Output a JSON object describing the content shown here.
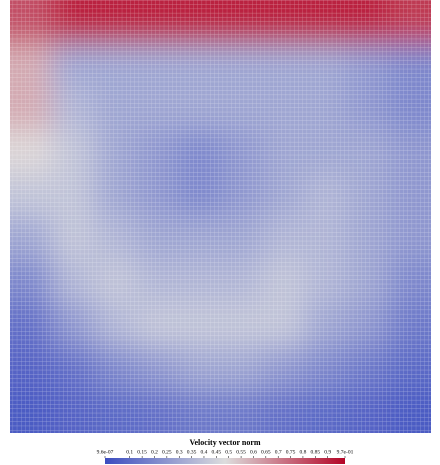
{
  "chart_data": {
    "type": "heatmap",
    "values": [
      [
        0.8,
        0.9,
        0.9,
        0.9,
        0.9,
        0.9,
        0.9,
        0.9,
        0.9,
        0.85
      ],
      [
        0.6,
        0.3,
        0.3,
        0.3,
        0.3,
        0.3,
        0.3,
        0.3,
        0.25,
        0.2
      ],
      [
        0.6,
        0.35,
        0.3,
        0.3,
        0.3,
        0.3,
        0.3,
        0.3,
        0.25,
        0.2
      ],
      [
        0.5,
        0.4,
        0.3,
        0.25,
        0.2,
        0.25,
        0.3,
        0.3,
        0.3,
        0.25
      ],
      [
        0.4,
        0.4,
        0.3,
        0.25,
        0.2,
        0.25,
        0.3,
        0.35,
        0.3,
        0.25
      ],
      [
        0.3,
        0.4,
        0.35,
        0.3,
        0.3,
        0.3,
        0.35,
        0.35,
        0.3,
        0.25
      ],
      [
        0.2,
        0.35,
        0.4,
        0.35,
        0.35,
        0.35,
        0.4,
        0.35,
        0.3,
        0.2
      ],
      [
        0.12,
        0.25,
        0.35,
        0.4,
        0.4,
        0.4,
        0.4,
        0.3,
        0.25,
        0.15
      ],
      [
        0.08,
        0.12,
        0.2,
        0.25,
        0.3,
        0.3,
        0.25,
        0.2,
        0.15,
        0.1
      ],
      [
        0.05,
        0.08,
        0.1,
        0.12,
        0.15,
        0.15,
        0.12,
        0.1,
        0.08,
        0.05
      ]
    ],
    "colormap": [
      "#3b4cc0",
      "#dddddd",
      "#b40426"
    ],
    "colorbar": {
      "title": "Velocity vector norm",
      "clim": [
        9.6e-07,
        0.97
      ],
      "ticks": [
        {
          "value": 9.6e-07,
          "label": "9.6e-07"
        },
        0.1,
        0.15,
        0.2,
        0.25,
        0.3,
        0.35,
        0.4,
        0.45,
        0.5,
        0.55,
        0.6,
        0.65,
        0.7,
        0.75,
        0.8,
        0.85,
        0.9,
        {
          "value": 0.97,
          "label": "9.7e-01"
        }
      ]
    }
  }
}
